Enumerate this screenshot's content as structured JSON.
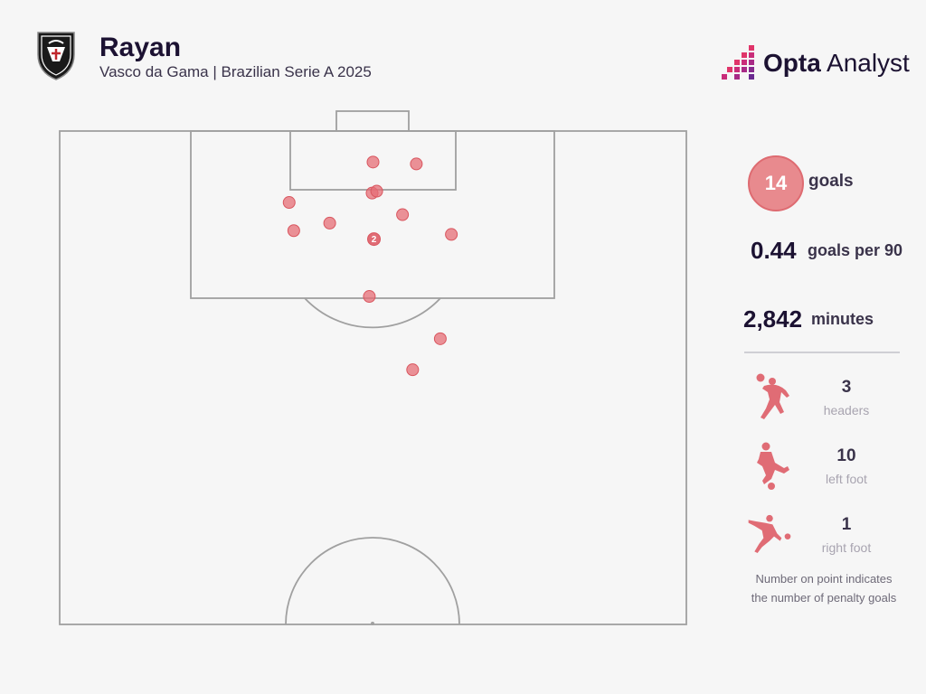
{
  "header": {
    "title": "Rayan",
    "subtitle": "Vasco da Gama | Brazilian Serie A 2025"
  },
  "brand": {
    "name_bold": "Opta",
    "name_regular": " Analyst"
  },
  "stats": {
    "goals_value": "14",
    "goals_label": "goals",
    "goals_per_90_value": "0.44",
    "goals_per_90_label": "goals per 90",
    "minutes_value": "2,842",
    "minutes_label": "minutes"
  },
  "goal_types": [
    {
      "value": "3",
      "label": "headers",
      "icon": "header-player-icon"
    },
    {
      "value": "10",
      "label": "left foot",
      "icon": "left-foot-player-icon"
    },
    {
      "value": "1",
      "label": "right foot",
      "icon": "right-foot-player-icon"
    }
  ],
  "note": {
    "line1": "Number on point indicates",
    "line2": "the number of penalty goals"
  },
  "colors": {
    "accent": "#e06c75",
    "text_dark": "#1c1232",
    "pitch_line": "#a0a0a0",
    "background": "#f6f6f6"
  },
  "chart_data": {
    "type": "scatter",
    "x_axis": "pitch width",
    "y_axis": "distance from goal line (m)",
    "xlim": [
      0,
      68
    ],
    "ylim": [
      0,
      52.5
    ],
    "points": [
      {
        "x": 34.0,
        "y": 3.3,
        "penalty_goals": null
      },
      {
        "x": 38.7,
        "y": 3.5,
        "penalty_goals": null
      },
      {
        "x": 33.9,
        "y": 6.6,
        "penalty_goals": null
      },
      {
        "x": 34.4,
        "y": 6.4,
        "penalty_goals": null
      },
      {
        "x": 24.9,
        "y": 7.6,
        "penalty_goals": null
      },
      {
        "x": 37.2,
        "y": 8.9,
        "penalty_goals": null
      },
      {
        "x": 29.3,
        "y": 9.8,
        "penalty_goals": null
      },
      {
        "x": 25.4,
        "y": 10.6,
        "penalty_goals": null
      },
      {
        "x": 42.5,
        "y": 11.0,
        "penalty_goals": null
      },
      {
        "x": 34.1,
        "y": 11.5,
        "penalty_goals": "2"
      },
      {
        "x": 33.6,
        "y": 17.6,
        "penalty_goals": null
      },
      {
        "x": 41.3,
        "y": 22.1,
        "penalty_goals": null
      },
      {
        "x": 38.3,
        "y": 25.4,
        "penalty_goals": null
      }
    ]
  }
}
